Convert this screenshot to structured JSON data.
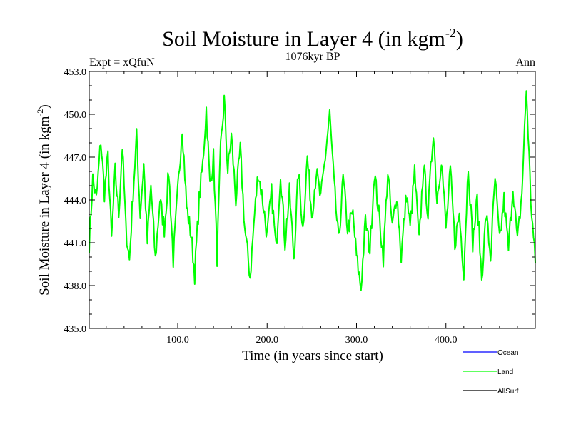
{
  "chart_data": {
    "type": "line",
    "title_main": "Soil Moisture in Layer 4 (in kgm",
    "title_sup": "-2",
    "title_close": ")",
    "subtitle": "1076kyr BP",
    "expt_label": "Expt = xQfuN",
    "season_label": "Ann",
    "xlabel": "Time (in years since start)",
    "ylabel_main": "Soil Moisture in Layer 4 (in kgm",
    "ylabel_sup": "-2",
    "ylabel_close": ")",
    "xlim": [
      1,
      500
    ],
    "ylim": [
      435,
      453
    ],
    "x_ticks": [
      100,
      200,
      300,
      400
    ],
    "x_tick_labels": [
      "100.0",
      "200.0",
      "300.0",
      "400.0"
    ],
    "y_ticks": [
      435,
      438,
      441,
      444,
      447,
      450,
      453
    ],
    "y_tick_labels": [
      "435.0",
      "438.0",
      "441.0",
      "444.0",
      "447.0",
      "450.0",
      "453.0"
    ],
    "x_start": 1,
    "x_step": 1,
    "anchors": [
      [
        1,
        441.0
      ],
      [
        5,
        445.5
      ],
      [
        9,
        444.0
      ],
      [
        14,
        448.2
      ],
      [
        18,
        444.5
      ],
      [
        22,
        447.0
      ],
      [
        26,
        441.2
      ],
      [
        30,
        446.0
      ],
      [
        34,
        443.0
      ],
      [
        38,
        447.8
      ],
      [
        42,
        442.0
      ],
      [
        46,
        439.8
      ],
      [
        50,
        444.5
      ],
      [
        54,
        448.4
      ],
      [
        58,
        443.0
      ],
      [
        62,
        446.5
      ],
      [
        66,
        441.0
      ],
      [
        70,
        445.0
      ],
      [
        75,
        439.8
      ],
      [
        80,
        444.0
      ],
      [
        85,
        442.0
      ],
      [
        90,
        446.0
      ],
      [
        95,
        439.8
      ],
      [
        100,
        444.5
      ],
      [
        105,
        449.2
      ],
      [
        110,
        443.5
      ],
      [
        115,
        441.5
      ],
      [
        119,
        438.8
      ],
      [
        124,
        444.0
      ],
      [
        128,
        446.5
      ],
      [
        132,
        450.4
      ],
      [
        136,
        445.0
      ],
      [
        140,
        447.0
      ],
      [
        144,
        440.0
      ],
      [
        148,
        447.5
      ],
      [
        152,
        451.0
      ],
      [
        156,
        446.0
      ],
      [
        160,
        448.5
      ],
      [
        165,
        444.0
      ],
      [
        170,
        447.5
      ],
      [
        175,
        442.0
      ],
      [
        181,
        438.6
      ],
      [
        186,
        443.0
      ],
      [
        190,
        446.0
      ],
      [
        195,
        444.0
      ],
      [
        200,
        441.5
      ],
      [
        205,
        444.5
      ],
      [
        210,
        440.5
      ],
      [
        215,
        446.0
      ],
      [
        220,
        441.0
      ],
      [
        225,
        444.5
      ],
      [
        230,
        440.0
      ],
      [
        235,
        446.0
      ],
      [
        240,
        442.0
      ],
      [
        245,
        447.0
      ],
      [
        250,
        443.0
      ],
      [
        255,
        446.0
      ],
      [
        260,
        444.0
      ],
      [
        265,
        447.0
      ],
      [
        270,
        450.0
      ],
      [
        275,
        445.0
      ],
      [
        280,
        441.0
      ],
      [
        285,
        445.5
      ],
      [
        290,
        442.0
      ],
      [
        296,
        443.0
      ],
      [
        300,
        440.0
      ],
      [
        305,
        437.8
      ],
      [
        310,
        442.5
      ],
      [
        315,
        440.5
      ],
      [
        320,
        446.0
      ],
      [
        325,
        443.0
      ],
      [
        330,
        440.0
      ],
      [
        335,
        446.0
      ],
      [
        340,
        442.0
      ],
      [
        345,
        444.5
      ],
      [
        350,
        440.0
      ],
      [
        356,
        444.5
      ],
      [
        360,
        442.0
      ],
      [
        365,
        446.0
      ],
      [
        370,
        441.0
      ],
      [
        375,
        446.5
      ],
      [
        380,
        443.0
      ],
      [
        386,
        449.0
      ],
      [
        390,
        444.0
      ],
      [
        395,
        447.0
      ],
      [
        400,
        442.0
      ],
      [
        405,
        446.0
      ],
      [
        410,
        441.0
      ],
      [
        415,
        443.0
      ],
      [
        420,
        439.0
      ],
      [
        425,
        446.5
      ],
      [
        430,
        441.0
      ],
      [
        435,
        444.0
      ],
      [
        440,
        438.5
      ],
      [
        445,
        443.0
      ],
      [
        450,
        440.0
      ],
      [
        455,
        445.5
      ],
      [
        460,
        441.0
      ],
      [
        465,
        444.0
      ],
      [
        470,
        440.5
      ],
      [
        475,
        445.0
      ],
      [
        480,
        441.0
      ],
      [
        485,
        444.5
      ],
      [
        490,
        451.8
      ],
      [
        495,
        444.0
      ],
      [
        500,
        439.5
      ]
    ],
    "series": [
      {
        "name": "Ocean",
        "color": "#0000ff",
        "values": []
      },
      {
        "name": "Land",
        "color": "#00ff00",
        "values": []
      },
      {
        "name": "AllSurf",
        "color": "#000000",
        "values": []
      }
    ]
  }
}
